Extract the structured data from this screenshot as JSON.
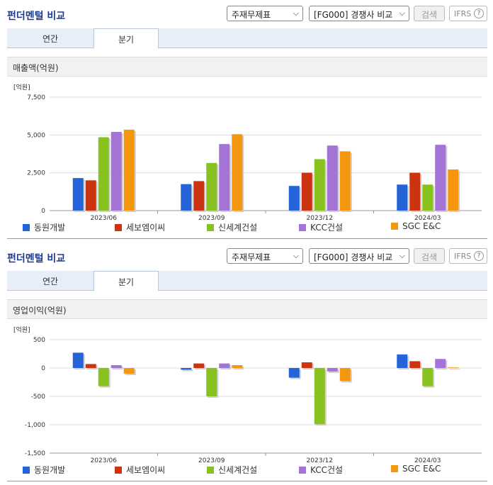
{
  "panel_title": "펀더멘털 비교",
  "selects": {
    "statement": "주재무제표",
    "compare": "[FG000] 경쟁사 비교"
  },
  "search_label": "검색",
  "ifrs_label": "IFRS",
  "help_label": "?",
  "tabs": [
    "연간",
    "분기"
  ],
  "active_tab": "분기",
  "colors": [
    "#2563d9",
    "#cc3311",
    "#88c21f",
    "#a374d6",
    "#f5960f"
  ],
  "chart_data": [
    {
      "type": "bar",
      "title": "매출액(억원)",
      "unit": "[억원]",
      "categories": [
        "2023/06",
        "2023/09",
        "2023/12",
        "2024/03"
      ],
      "yticks": [
        0,
        2500,
        5000,
        7500
      ],
      "ytick_labels": [
        "0",
        "2,500",
        "5,000",
        "7,500"
      ],
      "ylim": [
        0,
        7500
      ],
      "series": [
        {
          "name": "동원개발",
          "values": [
            2150,
            1750,
            1630,
            1720
          ]
        },
        {
          "name": "세보엠이씨",
          "values": [
            2000,
            1950,
            2500,
            2500
          ]
        },
        {
          "name": "신세계건설",
          "values": [
            4850,
            3150,
            3400,
            1720
          ]
        },
        {
          "name": "KCC건설",
          "values": [
            5200,
            4400,
            4300,
            4350
          ]
        },
        {
          "name": "SGC E&C",
          "values": [
            5350,
            5050,
            3920,
            2720
          ]
        }
      ]
    },
    {
      "type": "bar",
      "title": "영업이익(억원)",
      "unit": "[억원]",
      "categories": [
        "2023/06",
        "2023/09",
        "2023/12",
        "2024/03"
      ],
      "yticks": [
        500,
        0,
        -500,
        -1000,
        -1500
      ],
      "ytick_labels": [
        "500",
        "0",
        "-500",
        "-1,000",
        "-1,500"
      ],
      "ylim": [
        -1500,
        500
      ],
      "series": [
        {
          "name": "동원개발",
          "values": [
            270,
            -30,
            -170,
            240
          ]
        },
        {
          "name": "세보엠이씨",
          "values": [
            70,
            80,
            100,
            120
          ]
        },
        {
          "name": "신세계건설",
          "values": [
            -320,
            -500,
            -990,
            -320
          ]
        },
        {
          "name": "KCC건설",
          "values": [
            50,
            80,
            -60,
            160
          ]
        },
        {
          "name": "SGC E&C",
          "values": [
            -100,
            50,
            -230,
            10
          ]
        }
      ]
    }
  ]
}
